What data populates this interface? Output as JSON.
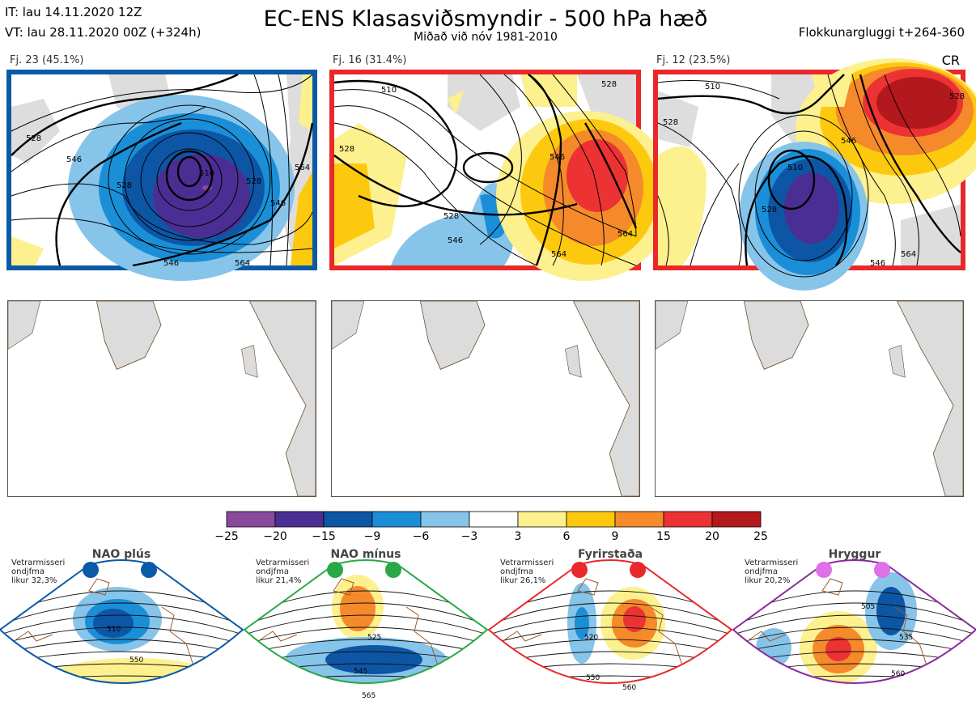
{
  "header": {
    "it_line": "IT: lau 14.11.2020 12Z",
    "vt_line": "VT: lau 28.11.2020 00Z  (+324h)",
    "title": "EC-ENS Klasasviðsmyndir - 500 hPa hæð",
    "subtitle": "Miðað við nóv 1981-2010",
    "window_label": "Flokkunargluggi t+264-360",
    "cr_label": "CR"
  },
  "clusters": [
    {
      "label": "Fj. 23 (45.1%)",
      "border_color": "#0a5aa8",
      "contours": [
        "528",
        "546",
        "510",
        "528",
        "528",
        "546",
        "564",
        "546",
        "564"
      ]
    },
    {
      "label": "Fj. 16 (31.4%)",
      "border_color": "#e8282a",
      "contours": [
        "510",
        "528",
        "528",
        "546",
        "546",
        "564",
        "528",
        "564"
      ]
    },
    {
      "label": "Fj. 12 (23.5%)",
      "border_color": "#e8282a",
      "contours": [
        "510",
        "528",
        "528",
        "510",
        "546",
        "546",
        "564",
        "528"
      ]
    }
  ],
  "colorbar": {
    "ticks": [
      "−25",
      "−20",
      "−15",
      "−9",
      "−6",
      "−3",
      "3",
      "6",
      "9",
      "15",
      "20",
      "25"
    ],
    "colors": [
      "#8a4a9c",
      "#4b2e93",
      "#0d56a6",
      "#1a8fd8",
      "#86c4ea",
      "#ffffff",
      "#fdf08e",
      "#fdc90e",
      "#f58a2a",
      "#ec3232",
      "#b3181c"
    ]
  },
  "regimes": [
    {
      "name": "NAO plús",
      "note": "Vetrarmisseri\nondjfma\nlikur 32,3%",
      "frame_color": "#0a5aa8",
      "dot_color": "#0a5aa8",
      "contours": [
        "510",
        "550"
      ]
    },
    {
      "name": "NAO mínus",
      "note": "Vetrarmisseri\nondjfma\nlikur 21,4%",
      "frame_color": "#2aa845",
      "dot_color": "#2aa845",
      "contours": [
        "525",
        "545",
        "565"
      ]
    },
    {
      "name": "Fyrirstaða",
      "note": "Vetrarmisseri\nondjfma\nlikur 26,1%",
      "frame_color": "#e8282a",
      "dot_color": "#e8282a",
      "contours": [
        "520",
        "550",
        "560"
      ]
    },
    {
      "name": "Hryggur",
      "note": "Vetrarmisseri\nondjfma\nlikur 20,2%",
      "frame_color": "#8a2a9c",
      "dot_color": "#e070e8",
      "contours": [
        "505",
        "535",
        "560"
      ]
    }
  ]
}
